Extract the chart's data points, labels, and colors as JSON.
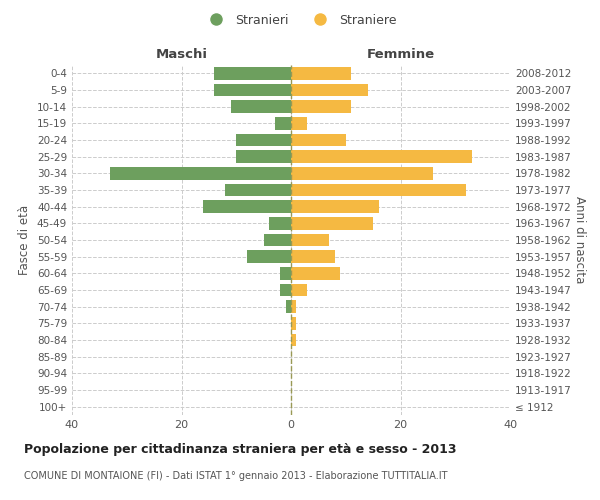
{
  "age_groups": [
    "100+",
    "95-99",
    "90-94",
    "85-89",
    "80-84",
    "75-79",
    "70-74",
    "65-69",
    "60-64",
    "55-59",
    "50-54",
    "45-49",
    "40-44",
    "35-39",
    "30-34",
    "25-29",
    "20-24",
    "15-19",
    "10-14",
    "5-9",
    "0-4"
  ],
  "birth_years": [
    "≤ 1912",
    "1913-1917",
    "1918-1922",
    "1923-1927",
    "1928-1932",
    "1933-1937",
    "1938-1942",
    "1943-1947",
    "1948-1952",
    "1953-1957",
    "1958-1962",
    "1963-1967",
    "1968-1972",
    "1973-1977",
    "1978-1982",
    "1983-1987",
    "1988-1992",
    "1993-1997",
    "1998-2002",
    "2003-2007",
    "2008-2012"
  ],
  "maschi": [
    0,
    0,
    0,
    0,
    0,
    0,
    1,
    2,
    2,
    8,
    5,
    4,
    16,
    12,
    33,
    10,
    10,
    3,
    11,
    14,
    14
  ],
  "femmine": [
    0,
    0,
    0,
    0,
    1,
    1,
    1,
    3,
    9,
    8,
    7,
    15,
    16,
    32,
    26,
    33,
    10,
    3,
    11,
    14,
    11
  ],
  "maschi_color": "#6d9f5e",
  "femmine_color": "#f5b942",
  "grid_color": "#cccccc",
  "title": "Popolazione per cittadinanza straniera per età e sesso - 2013",
  "subtitle": "COMUNE DI MONTAIONE (FI) - Dati ISTAT 1° gennaio 2013 - Elaborazione TUTTITALIA.IT",
  "ylabel_left": "Fasce di età",
  "ylabel_right": "Anni di nascita",
  "legend_maschi": "Stranieri",
  "legend_femmine": "Straniere",
  "xlim": 40,
  "bar_height": 0.75
}
